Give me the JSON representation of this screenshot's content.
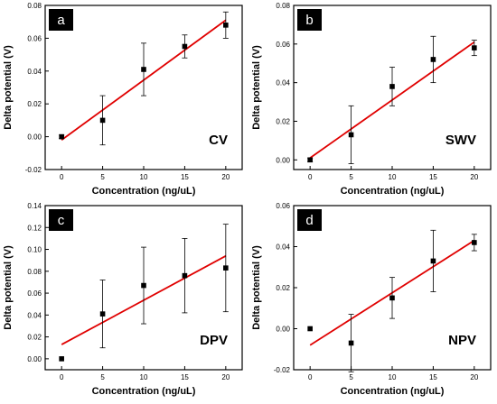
{
  "chart_data": [
    {
      "type": "scatter",
      "panel": "a",
      "method": "CV",
      "xlabel": "Concentration (ng/uL)",
      "ylabel": "Delta potential (V)",
      "xlim": [
        -2,
        22
      ],
      "ylim": [
        -0.02,
        0.08
      ],
      "xticks": [
        0,
        5,
        10,
        15,
        20
      ],
      "yticks": [
        -0.02,
        0.0,
        0.02,
        0.04,
        0.06,
        0.08
      ],
      "ytick_labels": [
        "-0.02",
        "0.00",
        "0.02",
        "0.04",
        "0.06",
        "0.08"
      ],
      "points": [
        {
          "x": 0,
          "y": 0.0,
          "err": 0.001
        },
        {
          "x": 5,
          "y": 0.01,
          "err": 0.015
        },
        {
          "x": 10,
          "y": 0.041,
          "err": 0.016
        },
        {
          "x": 15,
          "y": 0.055,
          "err": 0.007
        },
        {
          "x": 20,
          "y": 0.068,
          "err": 0.008
        }
      ],
      "fit": {
        "x": [
          0,
          20
        ],
        "y": [
          -0.002,
          0.071
        ]
      }
    },
    {
      "type": "scatter",
      "panel": "b",
      "method": "SWV",
      "xlabel": "Concentration (ng/uL)",
      "ylabel": "Delta potential (V)",
      "xlim": [
        -2,
        22
      ],
      "ylim": [
        -0.005,
        0.08
      ],
      "xticks": [
        0,
        5,
        10,
        15,
        20
      ],
      "yticks": [
        0.0,
        0.02,
        0.04,
        0.06,
        0.08
      ],
      "ytick_labels": [
        "0.00",
        "0.02",
        "0.04",
        "0.06",
        "0.08"
      ],
      "points": [
        {
          "x": 0,
          "y": 0.0,
          "err": 0.001
        },
        {
          "x": 5,
          "y": 0.013,
          "err": 0.015
        },
        {
          "x": 10,
          "y": 0.038,
          "err": 0.01
        },
        {
          "x": 15,
          "y": 0.052,
          "err": 0.012
        },
        {
          "x": 20,
          "y": 0.058,
          "err": 0.004
        }
      ],
      "fit": {
        "x": [
          0,
          20
        ],
        "y": [
          0.001,
          0.061
        ]
      }
    },
    {
      "type": "scatter",
      "panel": "c",
      "method": "DPV",
      "xlabel": "Concentration (ng/uL)",
      "ylabel": "Delta potential (V)",
      "xlim": [
        -2,
        22
      ],
      "ylim": [
        -0.01,
        0.14
      ],
      "xticks": [
        0,
        5,
        10,
        15,
        20
      ],
      "yticks": [
        0.0,
        0.02,
        0.04,
        0.06,
        0.08,
        0.1,
        0.12,
        0.14
      ],
      "ytick_labels": [
        "0.00",
        "0.02",
        "0.04",
        "0.06",
        "0.08",
        "0.10",
        "0.12",
        "0.14"
      ],
      "points": [
        {
          "x": 0,
          "y": 0.0,
          "err": 0.0
        },
        {
          "x": 5,
          "y": 0.041,
          "err": 0.031
        },
        {
          "x": 10,
          "y": 0.067,
          "err": 0.035
        },
        {
          "x": 15,
          "y": 0.076,
          "err": 0.034
        },
        {
          "x": 20,
          "y": 0.083,
          "err": 0.04
        }
      ],
      "fit": {
        "x": [
          0,
          20
        ],
        "y": [
          0.013,
          0.094
        ]
      }
    },
    {
      "type": "scatter",
      "panel": "d",
      "method": "NPV",
      "xlabel": "Concentration (ng/uL)",
      "ylabel": "Delta potential (V)",
      "xlim": [
        -2,
        22
      ],
      "ylim": [
        -0.02,
        0.06
      ],
      "xticks": [
        0,
        5,
        10,
        15,
        20
      ],
      "yticks": [
        -0.02,
        0.0,
        0.02,
        0.04,
        0.06
      ],
      "ytick_labels": [
        "-0.02",
        "0.00",
        "0.02",
        "0.04",
        "0.06"
      ],
      "points": [
        {
          "x": 0,
          "y": 0.0,
          "err": 0.0
        },
        {
          "x": 5,
          "y": -0.007,
          "err": 0.014
        },
        {
          "x": 10,
          "y": 0.015,
          "err": 0.01
        },
        {
          "x": 15,
          "y": 0.033,
          "err": 0.015
        },
        {
          "x": 20,
          "y": 0.042,
          "err": 0.004
        }
      ],
      "fit": {
        "x": [
          0,
          20
        ],
        "y": [
          -0.008,
          0.043
        ]
      }
    }
  ],
  "colors": {
    "fit_line": "#e00000",
    "points": "#000000",
    "badge_background": "#000000",
    "badge_text": "#ffffff"
  }
}
